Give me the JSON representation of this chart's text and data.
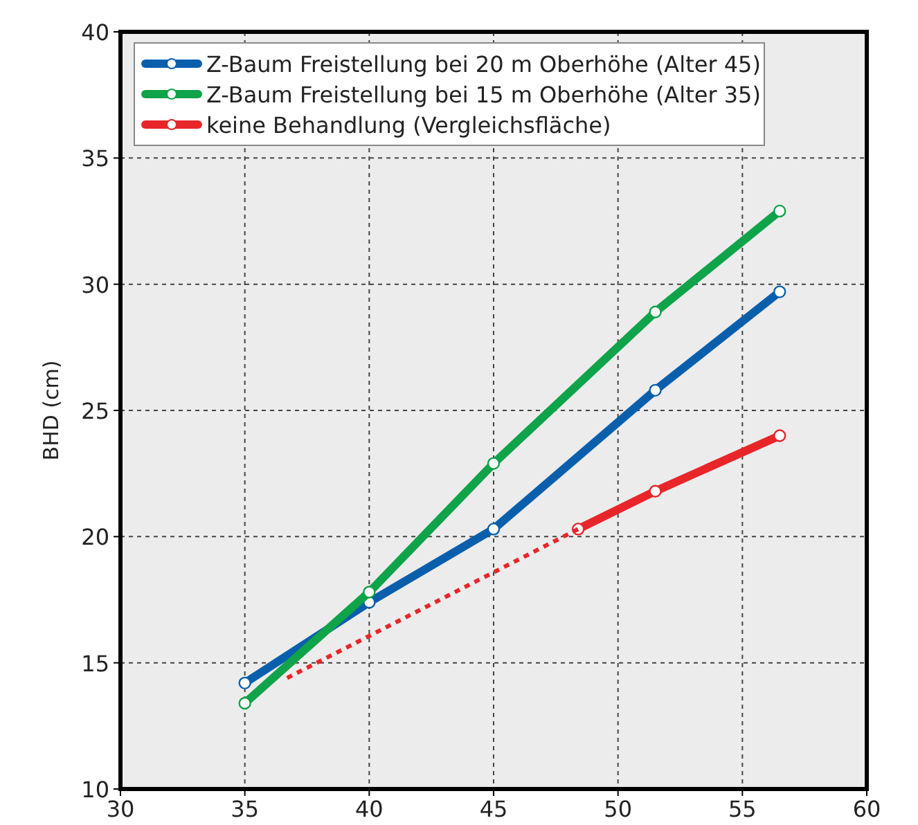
{
  "chart_data": {
    "type": "line",
    "ylabel": "BHD (cm)",
    "xlim": [
      30,
      60
    ],
    "xticks": [
      30,
      35,
      40,
      45,
      50,
      55,
      60
    ],
    "ylim": [
      10,
      40
    ],
    "yticks": [
      10,
      15,
      20,
      25,
      30,
      35,
      40
    ],
    "grid": true,
    "legend": "top left",
    "marker": "circle",
    "line_style": "solid",
    "series": [
      {
        "name": "Z-Baum Freistellung bei 20 m Oberhöhe (Alter 45)",
        "color": "#0a5fad",
        "x": [
          35,
          40,
          45,
          51.5,
          56.5
        ],
        "values": [
          14.2,
          17.4,
          20.3,
          25.8,
          29.7
        ]
      },
      {
        "name": "Z-Baum Freistellung bei 15 m Oberhöhe (Alter 35)",
        "color": "#0fa34a",
        "x": [
          35,
          40,
          45,
          51.5,
          56.5
        ],
        "values": [
          13.4,
          17.8,
          22.9,
          28.9,
          32.9
        ]
      },
      {
        "name": "keine Behandlung (Vergleichsfläche)",
        "color": "#e8262a",
        "x": [
          48.4,
          51.5,
          56.5
        ],
        "values": [
          20.3,
          21.8,
          24.0
        ]
      },
      {
        "color": "#e8262a",
        "x": [
          36.7,
          48.4
        ],
        "values": [
          14.4,
          20.3
        ],
        "line_style": "dotted",
        "marker": "none"
      }
    ]
  }
}
